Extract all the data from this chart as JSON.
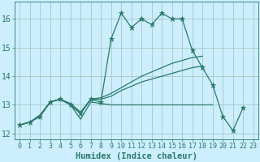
{
  "xlabel": "Humidex (Indice chaleur)",
  "background_color": "#cceeff",
  "grid_color": "#aacccc",
  "line_color": "#2a7a6a",
  "xlim": [
    -0.5,
    23.5
  ],
  "ylim": [
    11.8,
    16.6
  ],
  "xticks": [
    0,
    1,
    2,
    3,
    4,
    5,
    6,
    7,
    8,
    9,
    10,
    11,
    12,
    13,
    14,
    15,
    16,
    17,
    18,
    19,
    20,
    21,
    22,
    23
  ],
  "yticks": [
    12,
    13,
    14,
    15,
    16
  ],
  "series": [
    {
      "y": [
        12.3,
        12.4,
        12.6,
        13.1,
        13.2,
        13.0,
        12.7,
        13.2,
        13.1,
        15.3,
        16.2,
        15.7,
        16.0,
        15.8,
        16.2,
        16.0,
        16.0,
        14.9,
        14.3,
        13.7,
        12.6,
        12.1,
        12.9,
        null
      ],
      "has_markers": true
    },
    {
      "y": [
        12.3,
        12.4,
        12.6,
        13.1,
        13.2,
        13.0,
        12.5,
        13.1,
        13.05,
        13.0,
        13.0,
        13.0,
        13.0,
        13.0,
        13.0,
        13.0,
        13.0,
        13.0,
        13.0,
        13.0,
        null,
        null,
        null,
        null
      ],
      "has_markers": false
    },
    {
      "y": [
        12.3,
        12.4,
        12.6,
        13.1,
        13.2,
        13.0,
        12.7,
        13.2,
        13.2,
        13.3,
        13.5,
        13.65,
        13.8,
        13.9,
        14.0,
        14.1,
        14.2,
        14.3,
        14.35,
        null,
        null,
        null,
        null,
        null
      ],
      "has_markers": false
    },
    {
      "y": [
        12.3,
        12.4,
        12.65,
        13.1,
        13.2,
        13.05,
        12.75,
        13.2,
        13.25,
        13.4,
        13.6,
        13.8,
        14.0,
        14.15,
        14.3,
        14.45,
        14.55,
        14.65,
        14.7,
        null,
        null,
        null,
        null,
        null
      ],
      "has_markers": false
    }
  ],
  "tick_fontsize": 6,
  "xlabel_fontsize": 7.5,
  "figure_width": 3.2,
  "figure_height": 2.0,
  "dpi": 100
}
